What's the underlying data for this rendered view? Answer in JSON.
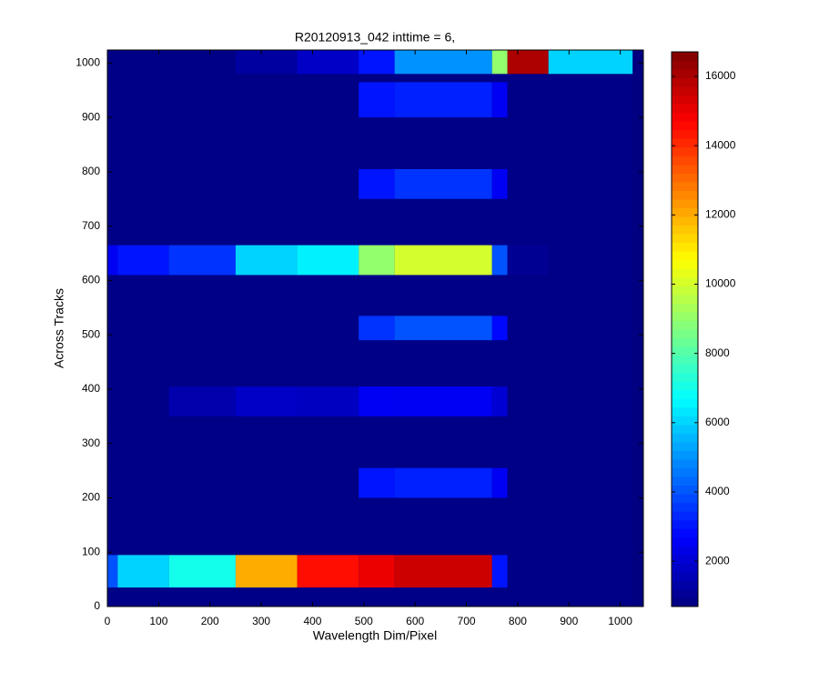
{
  "chart_data": {
    "type": "heatmap",
    "title": "R20120913_042 inttime = 6,",
    "x_label": "Wavelength Dim/Pixel",
    "y_label": "Across Tracks",
    "x_bins": [
      0,
      20,
      120,
      250,
      370,
      490,
      560,
      750,
      780,
      860,
      1024
    ],
    "y_bins": [
      0,
      35,
      95,
      200,
      255,
      350,
      405,
      490,
      535,
      610,
      665,
      750,
      805,
      900,
      965,
      980,
      1024
    ],
    "values": [
      [
        800,
        800,
        800,
        800,
        800,
        800,
        800,
        800,
        800,
        800
      ],
      [
        4000,
        6000,
        7000,
        12000,
        14500,
        15000,
        15500,
        3000,
        800,
        800
      ],
      [
        800,
        800,
        800,
        800,
        800,
        800,
        800,
        800,
        800,
        800
      ],
      [
        800,
        800,
        800,
        800,
        800,
        3000,
        3200,
        2500,
        800,
        800
      ],
      [
        800,
        800,
        800,
        800,
        800,
        800,
        800,
        800,
        800,
        800
      ],
      [
        800,
        800,
        1400,
        1800,
        1700,
        2500,
        2500,
        2000,
        800,
        800
      ],
      [
        800,
        800,
        800,
        800,
        800,
        800,
        800,
        800,
        800,
        800
      ],
      [
        800,
        800,
        800,
        800,
        800,
        3500,
        4000,
        2800,
        800,
        800
      ],
      [
        800,
        800,
        800,
        800,
        800,
        800,
        800,
        800,
        800,
        800
      ],
      [
        2500,
        3000,
        3500,
        6000,
        6500,
        9000,
        10000,
        4000,
        1000,
        800
      ],
      [
        800,
        800,
        800,
        800,
        800,
        800,
        800,
        800,
        800,
        800
      ],
      [
        800,
        800,
        800,
        800,
        800,
        3000,
        3500,
        2500,
        800,
        800
      ],
      [
        800,
        800,
        800,
        800,
        800,
        800,
        800,
        800,
        800,
        800
      ],
      [
        800,
        800,
        800,
        800,
        800,
        3000,
        3200,
        2500,
        800,
        800
      ],
      [
        800,
        800,
        800,
        800,
        800,
        800,
        800,
        800,
        800,
        800
      ],
      [
        800,
        800,
        800,
        1200,
        1800,
        3000,
        5000,
        9000,
        16000,
        6000
      ]
    ],
    "colormap": "jet",
    "xlim": [
      0,
      1045
    ],
    "xticks": [
      0,
      100,
      200,
      300,
      400,
      500,
      600,
      700,
      800,
      900,
      1000
    ],
    "ylim": [
      0,
      1024
    ],
    "yticks": [
      0,
      100,
      200,
      300,
      400,
      500,
      600,
      700,
      800,
      900,
      1000
    ],
    "clim": [
      690,
      16710
    ],
    "cticks": [
      2000,
      4000,
      6000,
      8000,
      10000,
      12000,
      14000,
      16000
    ]
  }
}
